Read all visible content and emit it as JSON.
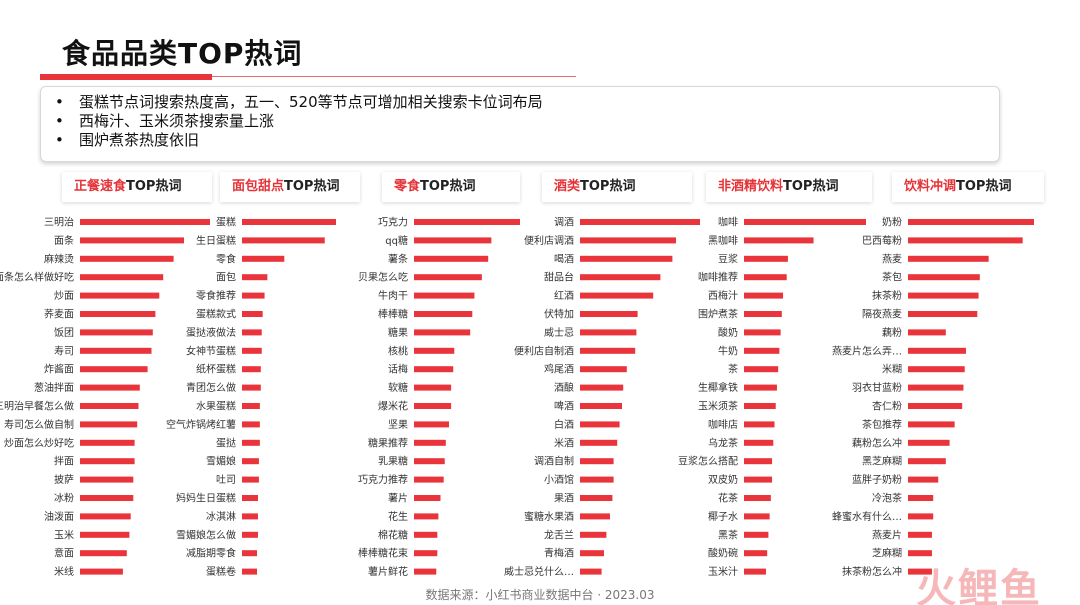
{
  "page": {
    "title": "食品品类TOP热词",
    "notes": [
      "蛋糕节点词搜索热度高，五一、520等节点可增加相关搜索卡位词布局",
      "西梅汁、玉米须茶搜索量上涨",
      "围炉煮茶热度依旧"
    ],
    "source": "数据来源：小红书商业数据中台 · 2023.03",
    "logo_text": "火鲤鱼"
  },
  "colors": {
    "bar": "#e8343a",
    "accent": "#e53338"
  },
  "chart_data": [
    {
      "type": "bar",
      "orientation": "horizontal",
      "title_highlight": "正餐速食",
      "title_rest": "TOP热词",
      "categories": [
        "三明治",
        "面条",
        "麻辣烫",
        "面条怎么样做好吃",
        "炒面",
        "荞麦面",
        "饭团",
        "寿司",
        "炸酱面",
        "葱油拌面",
        "三明治早餐怎么做",
        "寿司怎么做自制",
        "炒面怎么炒好吃",
        "拌面",
        "披萨",
        "冰粉",
        "油泼面",
        "玉米",
        "意面",
        "米线"
      ],
      "values": [
        100,
        80,
        72,
        64,
        61,
        58,
        56,
        55,
        52,
        46,
        45,
        44,
        42,
        42,
        41,
        41,
        39,
        38,
        36,
        33
      ]
    },
    {
      "type": "bar",
      "orientation": "horizontal",
      "title_highlight": "面包甜点",
      "title_rest": "TOP热词",
      "categories": [
        "蛋糕",
        "生日蛋糕",
        "零食",
        "面包",
        "零食推荐",
        "蛋糕款式",
        "蛋挞液做法",
        "女神节蛋糕",
        "纸杯蛋糕",
        "青团怎么做",
        "水果蛋糕",
        "空气炸锅烤红薯",
        "蛋挞",
        "雪媚娘",
        "吐司",
        "妈妈生日蛋糕",
        "冰淇淋",
        "雪媚娘怎么做",
        "减脂期零食",
        "蛋糕卷"
      ],
      "values": [
        100,
        88,
        45,
        27,
        24,
        22,
        21,
        21,
        20,
        20,
        19,
        19,
        19,
        18,
        18,
        17,
        17,
        17,
        16,
        16
      ]
    },
    {
      "type": "bar",
      "orientation": "horizontal",
      "title_highlight": "零食",
      "title_rest": "TOP热词",
      "categories": [
        "巧克力",
        "qq糖",
        "薯条",
        "贝果怎么吃",
        "牛肉干",
        "棒棒糖",
        "糖果",
        "核桃",
        "话梅",
        "软糖",
        "爆米花",
        "坚果",
        "糖果推荐",
        "乳果糖",
        "巧克力推荐",
        "薯片",
        "花生",
        "棉花糖",
        "棒棒糖花束",
        "薯片鲜花"
      ],
      "values": [
        100,
        73,
        70,
        64,
        57,
        55,
        53,
        38,
        37,
        35,
        35,
        33,
        30,
        29,
        28,
        25,
        23,
        22,
        22,
        21
      ]
    },
    {
      "type": "bar",
      "orientation": "horizontal",
      "title_highlight": "酒类",
      "title_rest": "TOP热词",
      "categories": [
        "调酒",
        "便利店调酒",
        "喝酒",
        "甜品台",
        "红酒",
        "伏特加",
        "威士忌",
        "便利店自制酒",
        "鸡尾酒",
        "酒酿",
        "啤酒",
        "白酒",
        "米酒",
        "调酒自制",
        "小酒馆",
        "果酒",
        "蜜糖水果酒",
        "龙舌兰",
        "青梅酒",
        "威士忌兑什么…"
      ],
      "values": [
        100,
        80,
        77,
        67,
        61,
        48,
        47,
        46,
        39,
        36,
        35,
        33,
        31,
        28,
        28,
        27,
        25,
        22,
        20,
        18
      ]
    },
    {
      "type": "bar",
      "orientation": "horizontal",
      "title_highlight": "非酒精饮料",
      "title_rest": "TOP热词",
      "categories": [
        "咖啡",
        "黑咖啡",
        "豆浆",
        "咖啡推荐",
        "西梅汁",
        "围炉煮茶",
        "酸奶",
        "牛奶",
        "茶",
        "生椰拿铁",
        "玉米须茶",
        "咖啡店",
        "乌龙茶",
        "豆浆怎么搭配",
        "双皮奶",
        "花茶",
        "椰子水",
        "黑茶",
        "酸奶碗",
        "玉米汁"
      ],
      "values": [
        100,
        57,
        36,
        35,
        32,
        31,
        30,
        29,
        28,
        27,
        26,
        25,
        24,
        23,
        23,
        22,
        21,
        20,
        19,
        18
      ]
    },
    {
      "type": "bar",
      "orientation": "horizontal",
      "title_highlight": "饮料冲调",
      "title_rest": "TOP热词",
      "categories": [
        "奶粉",
        "巴西莓粉",
        "燕麦",
        "茶包",
        "抹茶粉",
        "隔夜燕麦",
        "藕粉",
        "燕麦片怎么弄…",
        "米糊",
        "羽衣甘蓝粉",
        "杏仁粉",
        "茶包推荐",
        "藕粉怎么冲",
        "黑芝麻糊",
        "蓝胖子奶粉",
        "冷泡茶",
        "蜂蜜水有什么…",
        "燕麦片",
        "芝麻糊",
        "抹茶粉怎么冲"
      ],
      "values": [
        100,
        91,
        64,
        57,
        56,
        55,
        30,
        46,
        45,
        44,
        43,
        37,
        33,
        30,
        24,
        20,
        20,
        19,
        19,
        19
      ]
    }
  ]
}
